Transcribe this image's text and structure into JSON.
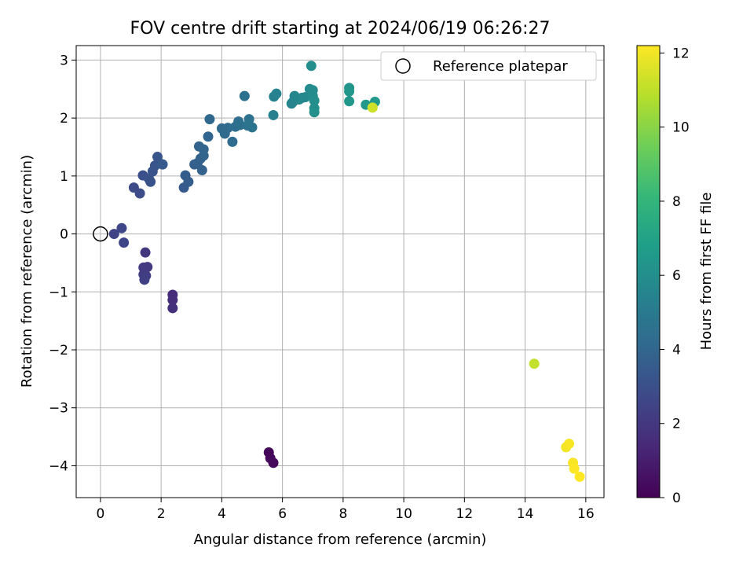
{
  "chart_data": {
    "type": "scatter",
    "title": "FOV centre drift starting at 2024/06/19 06:26:27",
    "xlabel": "Angular distance from reference (arcmin)",
    "ylabel": "Rotation from reference (arcmin)",
    "xlim": [
      -0.8,
      16.6
    ],
    "ylim": [
      -4.55,
      3.25
    ],
    "xticks": [
      0,
      2,
      4,
      6,
      8,
      10,
      12,
      14,
      16
    ],
    "yticks": [
      -4,
      -3,
      -2,
      -1,
      0,
      1,
      2,
      3
    ],
    "grid": true,
    "legend": {
      "placement": "top-right",
      "entries": [
        "Reference platepar"
      ]
    },
    "reference_point": {
      "x": 0,
      "y": 0
    },
    "colorbar": {
      "label": "Hours from first FF file",
      "range": [
        0,
        12.2
      ],
      "ticks": [
        0,
        2,
        4,
        6,
        8,
        10,
        12
      ],
      "colormap": [
        "#440154",
        "#482878",
        "#3e4989",
        "#31688e",
        "#26828e",
        "#1f9e89",
        "#35b779",
        "#6ece58",
        "#b5de2b",
        "#fde725"
      ]
    },
    "points": [
      [
        5.55,
        -3.77,
        0.1
      ],
      [
        5.6,
        -3.87,
        0.2
      ],
      [
        5.7,
        -3.95,
        0.3
      ],
      [
        2.38,
        -1.05,
        1.5
      ],
      [
        2.38,
        -1.14,
        1.6
      ],
      [
        2.38,
        -1.28,
        1.7
      ],
      [
        1.48,
        -0.32,
        2.0
      ],
      [
        1.42,
        -0.58,
        2.1
      ],
      [
        1.55,
        -0.57,
        2.1
      ],
      [
        1.42,
        -0.7,
        2.2
      ],
      [
        1.5,
        -0.72,
        2.2
      ],
      [
        1.45,
        -0.79,
        2.3
      ],
      [
        0.45,
        0.0,
        2.5
      ],
      [
        0.7,
        0.1,
        2.6
      ],
      [
        0.77,
        -0.15,
        2.6
      ],
      [
        1.1,
        0.8,
        2.8
      ],
      [
        1.3,
        0.7,
        2.9
      ],
      [
        1.4,
        1.01,
        3.0
      ],
      [
        1.6,
        0.95,
        3.1
      ],
      [
        1.65,
        0.9,
        3.1
      ],
      [
        1.72,
        1.08,
        3.2
      ],
      [
        1.8,
        1.18,
        3.2
      ],
      [
        1.88,
        1.33,
        3.3
      ],
      [
        1.95,
        1.22,
        3.3
      ],
      [
        2.05,
        1.2,
        3.4
      ],
      [
        2.75,
        0.8,
        3.5
      ],
      [
        2.9,
        0.9,
        3.6
      ],
      [
        2.8,
        1.01,
        3.6
      ],
      [
        3.1,
        1.2,
        3.7
      ],
      [
        3.2,
        1.22,
        3.7
      ],
      [
        3.35,
        1.1,
        3.8
      ],
      [
        3.3,
        1.3,
        3.8
      ],
      [
        3.4,
        1.35,
        3.9
      ],
      [
        3.25,
        1.51,
        3.9
      ],
      [
        3.4,
        1.46,
        4.0
      ],
      [
        3.55,
        1.68,
        4.0
      ],
      [
        3.6,
        1.98,
        4.1
      ],
      [
        4.0,
        1.82,
        4.2
      ],
      [
        4.1,
        1.73,
        4.2
      ],
      [
        4.2,
        1.83,
        4.3
      ],
      [
        4.35,
        1.59,
        4.3
      ],
      [
        4.45,
        1.85,
        4.4
      ],
      [
        4.55,
        1.94,
        4.4
      ],
      [
        4.6,
        1.88,
        4.5
      ],
      [
        4.75,
        2.38,
        4.5
      ],
      [
        4.9,
        1.98,
        4.6
      ],
      [
        4.85,
        1.87,
        4.6
      ],
      [
        5.0,
        1.84,
        4.7
      ],
      [
        5.7,
        2.05,
        5.3
      ],
      [
        5.72,
        2.37,
        5.4
      ],
      [
        5.8,
        2.42,
        5.4
      ],
      [
        6.3,
        2.25,
        5.5
      ],
      [
        6.35,
        2.28,
        5.5
      ],
      [
        6.4,
        2.38,
        5.6
      ],
      [
        6.55,
        2.32,
        5.6
      ],
      [
        6.65,
        2.35,
        5.7
      ],
      [
        6.75,
        2.36,
        5.7
      ],
      [
        6.9,
        2.5,
        5.8
      ],
      [
        7.0,
        2.48,
        5.9
      ],
      [
        6.95,
        2.9,
        6.0
      ],
      [
        7.0,
        2.38,
        5.9
      ],
      [
        7.05,
        2.3,
        6.0
      ],
      [
        7.05,
        2.17,
        6.0
      ],
      [
        7.05,
        2.1,
        6.1
      ],
      [
        8.2,
        2.52,
        6.3
      ],
      [
        8.2,
        2.46,
        6.4
      ],
      [
        8.2,
        2.29,
        6.4
      ],
      [
        8.75,
        2.23,
        6.5
      ],
      [
        9.05,
        2.28,
        6.6
      ],
      [
        8.97,
        2.18,
        11.3
      ],
      [
        14.3,
        -2.24,
        11.1
      ],
      [
        15.35,
        -3.68,
        12.0
      ],
      [
        15.45,
        -3.62,
        12.1
      ],
      [
        15.58,
        -3.95,
        12.1
      ],
      [
        15.62,
        -4.05,
        12.2
      ],
      [
        15.8,
        -4.19,
        12.2
      ]
    ]
  }
}
